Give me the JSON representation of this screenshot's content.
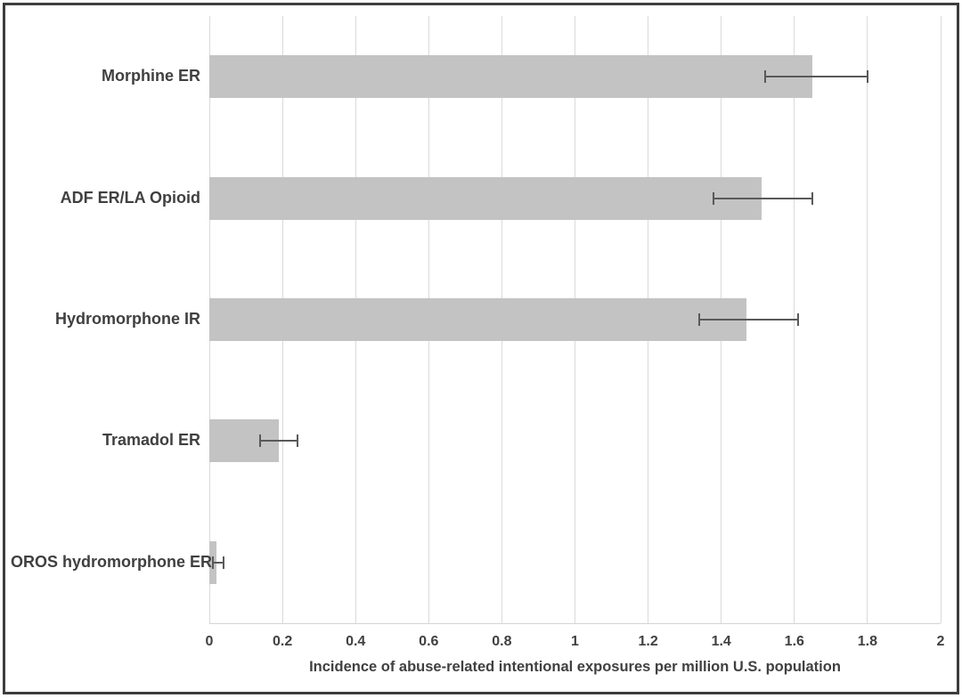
{
  "chart_data": {
    "type": "bar",
    "orientation": "horizontal",
    "title": "",
    "xlabel": "Incidence of abuse-related intentional exposures per million U.S. population",
    "ylabel": "",
    "categories": [
      "Morphine ER",
      "ADF ER/LA Opioid",
      "Hydromorphone IR",
      "Tramadol ER",
      "OROS hydromorphone ER"
    ],
    "values": [
      1.65,
      1.51,
      1.47,
      0.19,
      0.02
    ],
    "error_low": [
      1.52,
      1.38,
      1.34,
      0.14,
      0.01
    ],
    "error_high": [
      1.8,
      1.65,
      1.61,
      0.24,
      0.04
    ],
    "xlim": [
      0,
      2
    ],
    "xticks": [
      0,
      0.2,
      0.4,
      0.6,
      0.8,
      1,
      1.2,
      1.4,
      1.6,
      1.8,
      2
    ],
    "xtick_labels": [
      "0",
      "0.2",
      "0.4",
      "0.6",
      "0.8",
      "1",
      "1.2",
      "1.4",
      "1.6",
      "1.8",
      "2"
    ],
    "grid": "vertical",
    "legend": "none",
    "colors": {
      "bar": "#c3c3c3",
      "gridline": "#dadada",
      "axis_line": "#d4d4d4",
      "error_bar": "#595959",
      "text": "#404040",
      "frame_border": "#3d3d3d",
      "background": "#ffffff"
    }
  }
}
